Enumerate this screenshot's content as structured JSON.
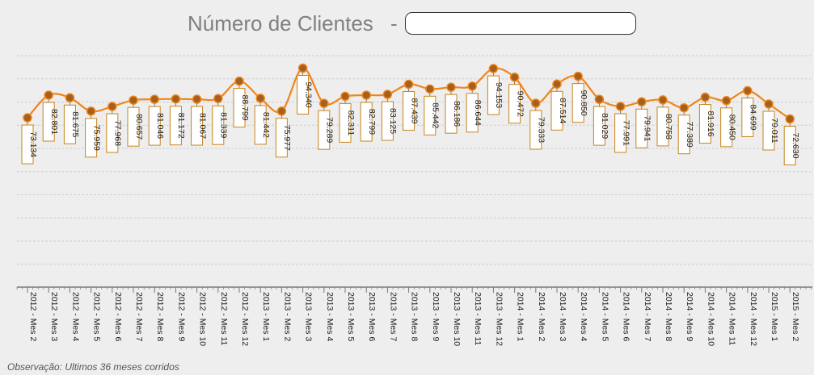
{
  "header": {
    "title": "Número de Clientes",
    "separator": "-",
    "client_value": "",
    "client_placeholder": ""
  },
  "note": "Observação: Ultimos 36 meses corridos",
  "colors": {
    "line": "#f0851c",
    "marker": "#a4601c",
    "label_border": "#c8841c",
    "label_bg": "#ffffff",
    "grid": "#cfcfcf",
    "axis": "#7a7a7a",
    "background": "#eeeeee"
  },
  "chart_data": {
    "type": "line",
    "title": "",
    "xlabel": "",
    "ylabel": "",
    "grid": true,
    "categories": [
      "2012 - Mes 2",
      "2012 - Mes 3",
      "2012 - Mes 4",
      "2012 - Mes 5",
      "2012 - Mes 6",
      "2012 - Mes 7",
      "2012 - Mes 8",
      "2012 - Mes 9",
      "2012 - Mes 10",
      "2012 - Mes 11",
      "2012 - Mes 12",
      "2013 - Mes 1",
      "2013 - Mes 2",
      "2013 - Mes 3",
      "2013 - Mes 4",
      "2013 - Mes 5",
      "2013 - Mes 6",
      "2013 - Mes 7",
      "2013 - Mes 8",
      "2013 - Mes 9",
      "2013 - Mes 10",
      "2013 - Mes 11",
      "2013 - Mes 12",
      "2014 - Mes 1",
      "2014 - Mes 2",
      "2014 - Mes 3",
      "2014 - Mes 4",
      "2014 - Mes 5",
      "2014 - Mes 6",
      "2014 - Mes 7",
      "2014 - Mes 8",
      "2014 - Mes 9",
      "2014 - Mes 10",
      "2014 - Mes 11",
      "2014 - Mes 12",
      "2015 - Mes 1",
      "2015 - Mes 2"
    ],
    "values": [
      73134,
      82801,
      81675,
      75959,
      77968,
      80657,
      81046,
      81172,
      81067,
      81339,
      88799,
      81442,
      75977,
      94340,
      79289,
      82311,
      82799,
      83125,
      87439,
      85442,
      86186,
      86644,
      94153,
      90472,
      79333,
      87514,
      90850,
      81029,
      77991,
      79941,
      80758,
      77389,
      81916,
      80450,
      84699,
      79011,
      72630
    ],
    "labels": [
      "73.134",
      "82.801",
      "81.675",
      "75.959",
      "77.968",
      "80.657",
      "81.046",
      "81.172",
      "81.067",
      "81.339",
      "88.799",
      "81.442",
      "75.977",
      "94.340",
      "79.289",
      "82.311",
      "82.799",
      "83.125",
      "87.439",
      "85.442",
      "86.186",
      "86.644",
      "94.153",
      "90.472",
      "79.333",
      "87.514",
      "90.850",
      "81.029",
      "77.991",
      "79.941",
      "80.758",
      "77.389",
      "81.916",
      "80.450",
      "84.699",
      "79.011",
      "72.630"
    ]
  }
}
